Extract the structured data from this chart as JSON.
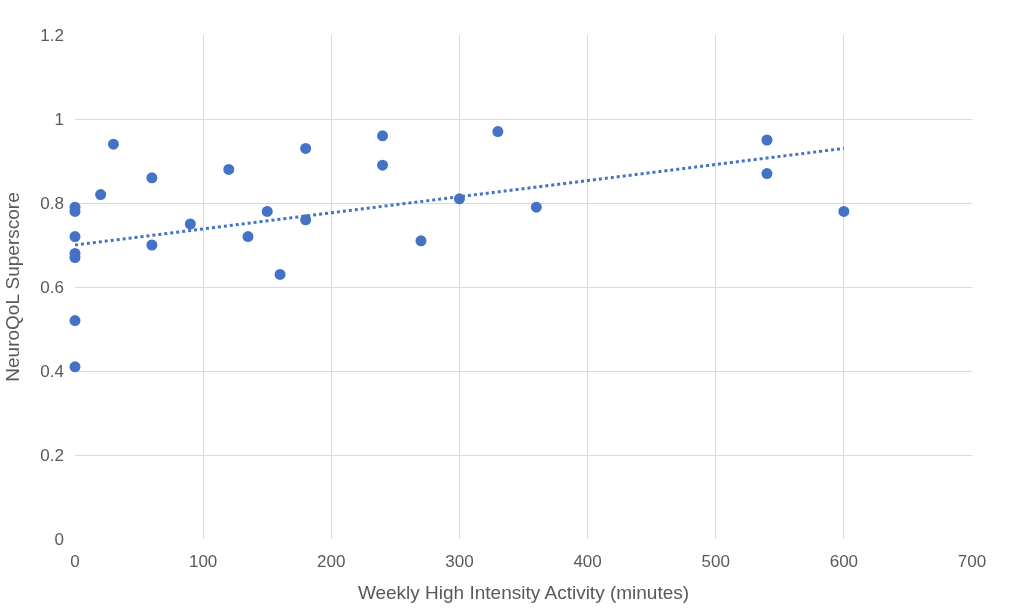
{
  "chart_data": {
    "type": "scatter",
    "xlabel": "Weekly High Intensity Activity (minutes)",
    "ylabel": "NeuroQoL Superscore",
    "xlim": [
      0,
      700
    ],
    "xticks": [
      0,
      100,
      200,
      300,
      400,
      500,
      600,
      700
    ],
    "ylim": [
      0,
      1.2
    ],
    "yticks": [
      0,
      0.2,
      0.4,
      0.6,
      0.8,
      1,
      1.2
    ],
    "grid": true,
    "legend": false,
    "marker": "circle",
    "series": [
      {
        "color": "#4472c4",
        "x": [
          0,
          0,
          0,
          0,
          0,
          0,
          0,
          20,
          30,
          60,
          60,
          90,
          120,
          135,
          150,
          160,
          180,
          180,
          240,
          240,
          270,
          300,
          330,
          360,
          540,
          540,
          600
        ],
        "values": [
          0.79,
          0.78,
          0.72,
          0.68,
          0.67,
          0.52,
          0.41,
          0.82,
          0.94,
          0.86,
          0.7,
          0.75,
          0.88,
          0.72,
          0.78,
          0.63,
          0.93,
          0.76,
          0.96,
          0.89,
          0.71,
          0.81,
          0.97,
          0.79,
          0.95,
          0.87,
          0.78
        ]
      },
      {
        "type": "line",
        "color": "#4472c4",
        "line_style": "dotted",
        "marker": "none",
        "x": [
          0,
          600
        ],
        "values": [
          0.7,
          0.93
        ]
      }
    ]
  }
}
